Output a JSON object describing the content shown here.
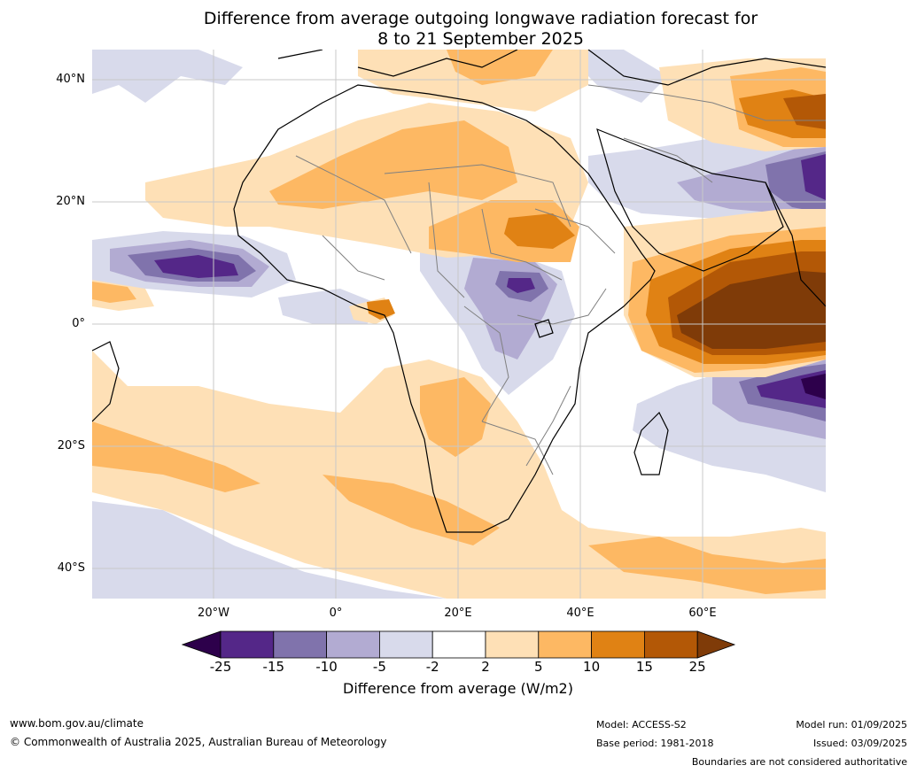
{
  "title": {
    "line1": "Difference from average outgoing longwave radiation forecast for",
    "line2": "8 to 21 September 2025"
  },
  "map": {
    "lat_labels": [
      "40°N",
      "20°N",
      "0°",
      "20°S",
      "40°S"
    ],
    "lon_labels": [
      "20°W",
      "0°",
      "20°E",
      "40°E",
      "60°E"
    ],
    "land_outline_color": "#000000",
    "border_color": "#808080",
    "grid_color": "#c8c8c8"
  },
  "colorbar": {
    "ticks": [
      "-25",
      "-15",
      "-10",
      "-5",
      "-2",
      "2",
      "5",
      "10",
      "15",
      "25"
    ],
    "colors": [
      "#2d004b",
      "#542788",
      "#8073ac",
      "#b2abd2",
      "#d8daeb",
      "#ffffff",
      "#fee0b6",
      "#fdb863",
      "#e08214",
      "#b35806",
      "#7f3b08"
    ],
    "label": "Difference from average (W/m2)"
  },
  "footer": {
    "website": "www.bom.gov.au/climate",
    "copyright": "© Commonwealth of Australia 2025, Australian Bureau of Meteorology",
    "model": "Model: ACCESS-S2",
    "base_period": "Base period: 1981-2018",
    "model_run": "Model run: 01/09/2025",
    "issued": "Issued: 03/09/2025",
    "disclaimer": "Boundaries are not considered authoritative"
  }
}
